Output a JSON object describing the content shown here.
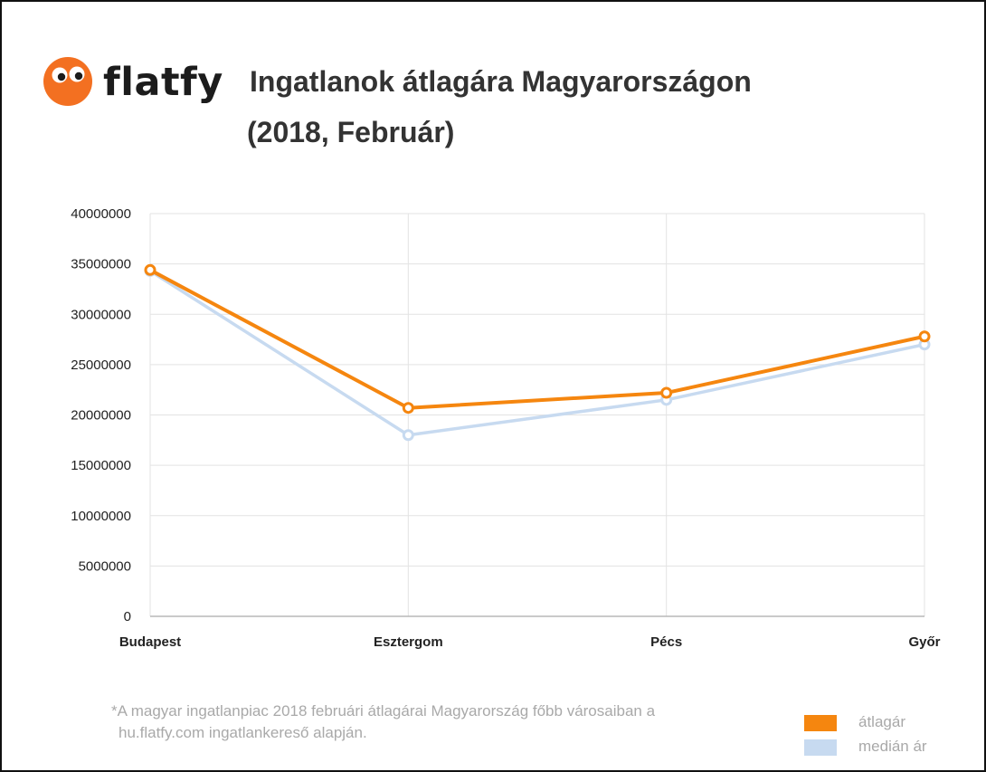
{
  "brand": {
    "name": "flatfy",
    "logo_icon": "flatfy-eyes-logo",
    "accent_color": "#f37021"
  },
  "header": {
    "title": "Ingatlanok átlagára Magyarországon",
    "subtitle": "(2018, Február)"
  },
  "chart_data": {
    "type": "line",
    "categories": [
      "Budapest",
      "Esztergom",
      "Pécs",
      "Győr"
    ],
    "series": [
      {
        "name": "átlagár",
        "values": [
          34400000,
          20700000,
          22200000,
          27800000
        ],
        "color": "#f5860f"
      },
      {
        "name": "medián ár",
        "values": [
          34300000,
          18000000,
          21500000,
          27000000
        ],
        "color": "#c7daf0"
      }
    ],
    "ylim": [
      0,
      40000000
    ],
    "yticks": [
      "0",
      "5000000",
      "10000000",
      "15000000",
      "20000000",
      "25000000",
      "30000000",
      "35000000",
      "40000000"
    ],
    "grid": true,
    "legend_position": "bottom-right"
  },
  "footnote": {
    "line1": "*A magyar ingatlanpiac 2018 februári átlagárai Magyarország főbb városaiban a",
    "line2": "hu.flatfy.com ingatlankereső alapján."
  }
}
